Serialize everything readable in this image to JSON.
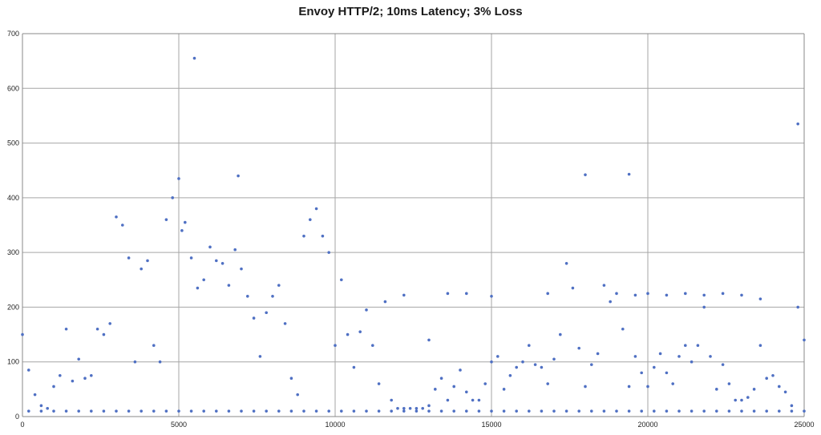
{
  "chart_data": {
    "type": "scatter",
    "title": "Envoy HTTP/2; 10ms Latency; 3% Loss",
    "xlabel": "",
    "ylabel": "",
    "xlim": [
      0,
      25000
    ],
    "ylim": [
      0,
      700
    ],
    "x_ticks": [
      0,
      5000,
      10000,
      15000,
      20000,
      25000
    ],
    "y_ticks": [
      0,
      100,
      200,
      300,
      400,
      500,
      600,
      700
    ],
    "grid": true,
    "legend": "none",
    "point_color": "#4f70c3",
    "series": [
      {
        "x": [
          0,
          200,
          400,
          600,
          800,
          1000,
          1200,
          1400,
          1600,
          1800,
          2000,
          2200,
          2400,
          2600,
          2800,
          3000,
          3200,
          3400,
          3600,
          3800,
          4000,
          4200,
          4400,
          4600,
          4800,
          5000,
          5100,
          5200,
          5400,
          5600,
          5800,
          6000,
          6200,
          6400,
          6600,
          6800,
          7000,
          7200,
          7400,
          7600,
          7800,
          8000,
          8200,
          8400,
          8600,
          8800,
          9000,
          9200,
          9400,
          9600,
          9800,
          10000,
          10200,
          10400,
          10600,
          10800,
          11000,
          11200,
          11400,
          11600,
          11800,
          12000,
          12200,
          12400,
          12600,
          12800,
          13000,
          13200,
          13400,
          13600,
          13800,
          14000,
          14200,
          14400,
          14600,
          14800,
          15000,
          15200,
          15400,
          15600,
          15800,
          16000,
          16200,
          16400,
          16600,
          16800,
          17000,
          17200,
          17400,
          17600,
          17800,
          18000,
          18200,
          18400,
          18600,
          18800,
          19000,
          19200,
          19400,
          19600,
          19800,
          20000,
          20200,
          20400,
          20600,
          20800,
          21000,
          21200,
          21400,
          21600,
          21800,
          22000,
          22200,
          22400,
          22600,
          22800,
          23000,
          23200,
          23400,
          23600,
          23800,
          24000,
          24200,
          24400,
          24600,
          24800,
          25000
        ],
        "y": [
          150,
          85,
          40,
          20,
          15,
          55,
          75,
          160,
          65,
          105,
          70,
          75,
          160,
          150,
          170,
          365,
          350,
          290,
          100,
          270,
          285,
          130,
          100,
          360,
          400,
          435,
          340,
          355,
          290,
          235,
          250,
          310,
          285,
          280,
          240,
          305,
          270,
          220,
          180,
          110,
          190,
          220,
          240,
          170,
          70,
          40,
          330,
          360,
          380,
          330,
          300,
          130,
          250,
          150,
          90,
          155,
          195,
          130,
          60,
          210,
          30,
          15,
          15,
          15,
          15,
          15,
          20,
          50,
          70,
          30,
          55,
          85,
          45,
          30,
          30,
          60,
          100,
          110,
          50,
          75,
          90,
          100,
          130,
          95,
          90,
          60,
          105,
          150,
          280,
          235,
          125,
          55,
          95,
          115,
          240,
          210,
          225,
          160,
          55,
          110,
          80,
          55,
          90,
          115,
          80,
          60,
          110,
          130,
          100,
          130,
          200,
          110,
          50,
          95,
          60,
          30,
          30,
          35,
          50,
          130,
          70,
          75,
          55,
          45,
          20,
          200,
          140
        ]
      },
      {
        "name": "",
        "x": [
          200,
          600,
          1000,
          1400,
          1800,
          2200,
          2600,
          3000,
          3400,
          3800,
          4200,
          4600,
          5000,
          5400,
          5800,
          6200,
          6600,
          7000,
          7400,
          7800,
          8200,
          8600,
          9000,
          9400,
          9800,
          10200,
          10600,
          11000,
          11400,
          11800,
          12200,
          12600,
          13000,
          13400,
          13800,
          14200,
          14600,
          15000,
          15400,
          15800,
          16200,
          16600,
          17000,
          17400,
          17800,
          18200,
          18600,
          19000,
          19400,
          19800,
          20200,
          20600,
          21000,
          21400,
          21800,
          22200,
          22600,
          23000,
          23400,
          23800,
          24200,
          24600,
          25000
        ],
        "y": [
          10,
          10,
          10,
          10,
          10,
          10,
          10,
          10,
          10,
          10,
          10,
          10,
          10,
          10,
          10,
          10,
          10,
          10,
          10,
          10,
          10,
          10,
          10,
          10,
          10,
          10,
          10,
          10,
          10,
          10,
          10,
          10,
          10,
          10,
          10,
          10,
          10,
          10,
          10,
          10,
          10,
          10,
          10,
          10,
          10,
          10,
          10,
          10,
          10,
          10,
          10,
          10,
          10,
          10,
          10,
          10,
          10,
          10,
          10,
          10,
          10,
          10,
          10
        ]
      },
      {
        "name": "",
        "x": [
          5500,
          6900,
          18000,
          19400,
          24800,
          12200,
          13000,
          13600,
          14200,
          15000,
          16800,
          19600,
          20000,
          20600,
          21200,
          21800,
          22400,
          23000,
          23600
        ],
        "y": [
          655,
          440,
          442,
          443,
          535,
          222,
          140,
          225,
          225,
          220,
          225,
          222,
          225,
          222,
          225,
          222,
          225,
          222,
          215
        ]
      }
    ]
  }
}
